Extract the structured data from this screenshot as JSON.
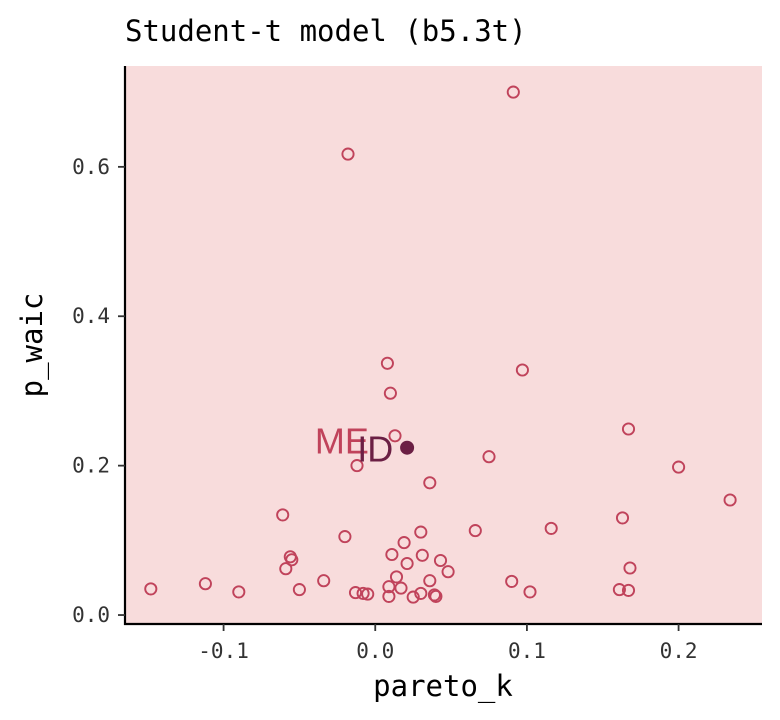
{
  "chart_data": {
    "type": "scatter",
    "title": "Student-t model (b5.3t)",
    "xlabel": "pareto_k",
    "ylabel": "p_waic",
    "xlim": [
      -0.165,
      0.255
    ],
    "ylim": [
      -0.012,
      0.735
    ],
    "x_ticks": [
      -0.1,
      0.0,
      0.1,
      0.2
    ],
    "x_tick_labels": [
      "-0.1",
      "0.0",
      "0.1",
      "0.2"
    ],
    "y_ticks": [
      0.0,
      0.2,
      0.4,
      0.6
    ],
    "y_tick_labels": [
      "0.0",
      "0.2",
      "0.4",
      "0.6"
    ],
    "grid": false,
    "colors": {
      "panel_background": "#f8dcdc",
      "point_stroke": "#c0435b",
      "highlight_point": "#6b1f44",
      "annotation_me": "#c0435b",
      "annotation_id": "#6b1f44",
      "axis": "#000000"
    },
    "points": [
      {
        "x": 0.091,
        "y": 0.7
      },
      {
        "x": -0.018,
        "y": 0.617
      },
      {
        "x": 0.008,
        "y": 0.337
      },
      {
        "x": 0.097,
        "y": 0.328
      },
      {
        "x": 0.01,
        "y": 0.297
      },
      {
        "x": 0.167,
        "y": 0.249
      },
      {
        "x": 0.013,
        "y": 0.24
      },
      {
        "x": 0.075,
        "y": 0.212
      },
      {
        "x": -0.012,
        "y": 0.2
      },
      {
        "x": 0.2,
        "y": 0.198
      },
      {
        "x": 0.036,
        "y": 0.177
      },
      {
        "x": 0.234,
        "y": 0.154
      },
      {
        "x": -0.061,
        "y": 0.134
      },
      {
        "x": 0.163,
        "y": 0.13
      },
      {
        "x": 0.116,
        "y": 0.116
      },
      {
        "x": 0.066,
        "y": 0.113
      },
      {
        "x": 0.03,
        "y": 0.111
      },
      {
        "x": -0.02,
        "y": 0.105
      },
      {
        "x": 0.019,
        "y": 0.097
      },
      {
        "x": 0.011,
        "y": 0.081
      },
      {
        "x": 0.031,
        "y": 0.08
      },
      {
        "x": -0.056,
        "y": 0.078
      },
      {
        "x": -0.055,
        "y": 0.074
      },
      {
        "x": 0.043,
        "y": 0.073
      },
      {
        "x": 0.021,
        "y": 0.069
      },
      {
        "x": 0.168,
        "y": 0.063
      },
      {
        "x": -0.059,
        "y": 0.062
      },
      {
        "x": 0.048,
        "y": 0.058
      },
      {
        "x": 0.014,
        "y": 0.051
      },
      {
        "x": -0.034,
        "y": 0.046
      },
      {
        "x": 0.036,
        "y": 0.046
      },
      {
        "x": 0.09,
        "y": 0.045
      },
      {
        "x": -0.112,
        "y": 0.042
      },
      {
        "x": 0.009,
        "y": 0.038
      },
      {
        "x": 0.017,
        "y": 0.036
      },
      {
        "x": -0.148,
        "y": 0.035
      },
      {
        "x": -0.05,
        "y": 0.034
      },
      {
        "x": 0.161,
        "y": 0.034
      },
      {
        "x": 0.167,
        "y": 0.033
      },
      {
        "x": -0.09,
        "y": 0.031
      },
      {
        "x": 0.102,
        "y": 0.031
      },
      {
        "x": -0.013,
        "y": 0.03
      },
      {
        "x": -0.008,
        "y": 0.029
      },
      {
        "x": 0.03,
        "y": 0.029
      },
      {
        "x": -0.005,
        "y": 0.028
      },
      {
        "x": 0.039,
        "y": 0.027
      },
      {
        "x": 0.04,
        "y": 0.025
      },
      {
        "x": 0.009,
        "y": 0.025
      },
      {
        "x": 0.025,
        "y": 0.024
      }
    ],
    "highlight": {
      "x": 0.021,
      "y": 0.224
    },
    "annotations": [
      {
        "text": "ME",
        "x": -0.022,
        "y": 0.229,
        "color": "#c0435b"
      },
      {
        "text": "ID",
        "x": 0.0,
        "y": 0.218,
        "color": "#6b1f44"
      }
    ]
  }
}
